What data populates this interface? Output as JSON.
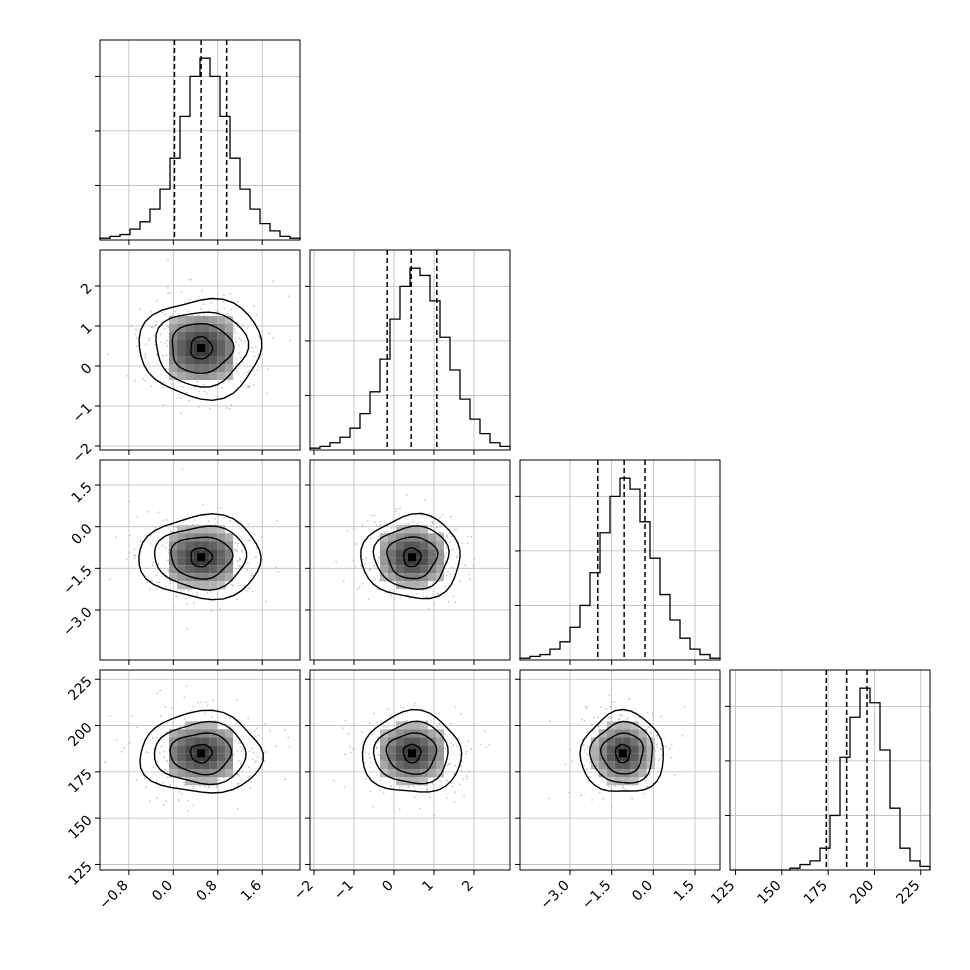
{
  "chart_data": {
    "type": "corner",
    "title": "",
    "parameters": [
      {
        "range": [
          -1.32,
          2.28
        ],
        "ticks": [
          -0.8,
          0.0,
          0.8,
          1.6
        ],
        "tick_labels": [
          "−0.8",
          "0.0",
          "0.8",
          "1.6"
        ],
        "quantiles": [
          0.02,
          0.5,
          0.96
        ],
        "hist_counts": [
          1,
          2,
          3,
          6,
          10,
          17,
          28,
          45,
          68,
          90,
          100,
          90,
          68,
          45,
          28,
          17,
          9,
          5,
          2,
          1
        ]
      },
      {
        "range": [
          -2.1,
          2.9
        ],
        "ticks": [
          -2,
          -1,
          0,
          1,
          2
        ],
        "tick_labels": [
          "−2",
          "−1",
          "0",
          "1",
          "2"
        ],
        "quantiles": [
          -0.17,
          0.43,
          1.07
        ],
        "hist_counts": [
          1,
          2,
          4,
          7,
          12,
          20,
          32,
          50,
          72,
          90,
          100,
          96,
          82,
          62,
          44,
          28,
          17,
          9,
          4,
          2
        ]
      },
      {
        "range": [
          -4.8,
          2.4
        ],
        "ticks": [
          -3.0,
          -1.5,
          0.0,
          1.5
        ],
        "tick_labels": [
          "−3.0",
          "−1.5",
          "0.0",
          "1.5"
        ],
        "quantiles": [
          -2.0,
          -1.05,
          -0.3
        ],
        "hist_counts": [
          1,
          2,
          3,
          6,
          10,
          18,
          30,
          48,
          70,
          90,
          100,
          94,
          76,
          56,
          36,
          22,
          12,
          6,
          3,
          1
        ]
      },
      {
        "range": [
          122,
          230
        ],
        "ticks": [
          125,
          150,
          175,
          200,
          225
        ],
        "tick_labels": [
          "125",
          "150",
          "175",
          "200",
          "225"
        ],
        "quantiles": [
          174,
          185,
          196
        ],
        "hist_counts": [
          0,
          0,
          0,
          0,
          0,
          0,
          1,
          3,
          5,
          12,
          30,
          62,
          84,
          100,
          92,
          66,
          34,
          12,
          5,
          2
        ]
      }
    ],
    "pair_centers": {
      "1-0": [
        0.5,
        0.45
      ],
      "2-0": [
        0.5,
        -1.1
      ],
      "2-1": [
        0.45,
        -1.1
      ],
      "3-0": [
        0.5,
        185
      ],
      "3-1": [
        0.45,
        185
      ],
      "3-2": [
        -1.1,
        185
      ]
    },
    "pair_widths": [
      0.55,
      0.62,
      0.75,
      11
    ],
    "contour_levels": [
      0.5,
      1.0,
      1.5,
      2.0
    ],
    "grid": true,
    "legend": "none"
  }
}
